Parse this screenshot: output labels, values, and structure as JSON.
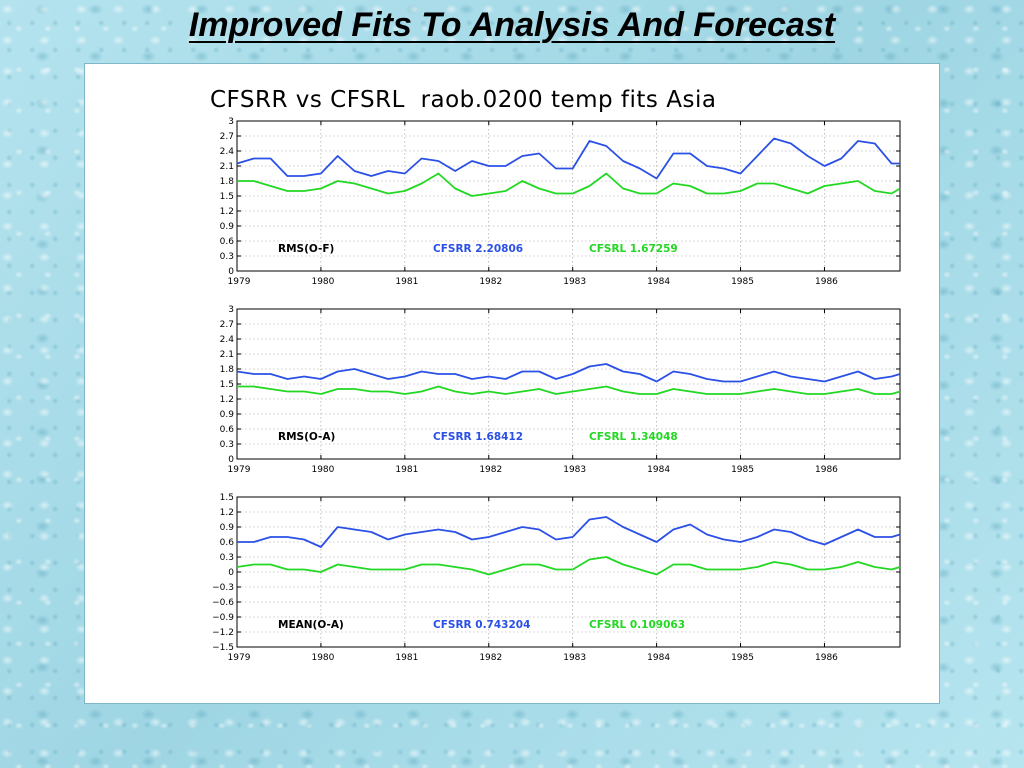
{
  "slide": {
    "title": "Improved Fits To Analysis And Forecast"
  },
  "figure": {
    "title": "CFSRR vs CFSRL  raob.0200 temp fits Asia"
  },
  "colors": {
    "cfsrr": "#2b50e6",
    "cfsrl": "#22d822"
  },
  "chart_data": [
    {
      "type": "line",
      "title": "",
      "xlabel": "",
      "ylabel": "",
      "x": [
        1979.0,
        1979.2,
        1979.4,
        1979.6,
        1979.8,
        1980.0,
        1980.2,
        1980.4,
        1980.6,
        1980.8,
        1981.0,
        1981.2,
        1981.4,
        1981.6,
        1981.8,
        1982.0,
        1982.2,
        1982.4,
        1982.6,
        1982.8,
        1983.0,
        1983.2,
        1983.4,
        1983.6,
        1983.8,
        1984.0,
        1984.2,
        1984.4,
        1984.6,
        1984.8,
        1985.0,
        1985.2,
        1985.4,
        1985.6,
        1985.8,
        1986.0,
        1986.2,
        1986.4,
        1986.6,
        1986.8,
        1986.9
      ],
      "xticks": [
        1979,
        1980,
        1981,
        1982,
        1983,
        1984,
        1985,
        1986
      ],
      "xlim": [
        1979,
        1986.9
      ],
      "ylim": [
        0,
        3
      ],
      "yticks": [
        0,
        0.3,
        0.6,
        0.9,
        1.2,
        1.5,
        1.8,
        2.1,
        2.4,
        2.7,
        3
      ],
      "ytick_labels": [
        "0",
        "0.3",
        "0.6",
        "0.9",
        "1.2",
        "1.5",
        "1.8",
        "2.1",
        "2.4",
        "2.7",
        "3"
      ],
      "series": [
        {
          "name": "CFSRR",
          "color": "#2b50e6",
          "values": [
            2.15,
            2.25,
            2.25,
            1.9,
            1.9,
            1.95,
            2.3,
            2.0,
            1.9,
            2.0,
            1.95,
            2.25,
            2.2,
            2.0,
            2.2,
            2.1,
            2.1,
            2.3,
            2.35,
            2.05,
            2.05,
            2.6,
            2.5,
            2.2,
            2.05,
            1.85,
            2.35,
            2.35,
            2.1,
            2.05,
            1.95,
            2.3,
            2.65,
            2.55,
            2.3,
            2.1,
            2.25,
            2.6,
            2.55,
            2.15,
            2.15
          ]
        },
        {
          "name": "CFSRL",
          "color": "#22d822",
          "values": [
            1.8,
            1.8,
            1.7,
            1.6,
            1.6,
            1.65,
            1.8,
            1.75,
            1.65,
            1.55,
            1.6,
            1.75,
            1.95,
            1.65,
            1.5,
            1.55,
            1.6,
            1.8,
            1.65,
            1.55,
            1.55,
            1.7,
            1.95,
            1.65,
            1.55,
            1.55,
            1.75,
            1.7,
            1.55,
            1.55,
            1.6,
            1.75,
            1.75,
            1.65,
            1.55,
            1.7,
            1.75,
            1.8,
            1.6,
            1.55,
            1.65
          ]
        }
      ],
      "annotations": {
        "label": "RMS(O-F)",
        "cfsrr": "CFSRR 2.20806",
        "cfsrl": "CFSRL 1.67259"
      }
    },
    {
      "type": "line",
      "title": "",
      "xlabel": "",
      "ylabel": "",
      "x": [
        1979.0,
        1979.2,
        1979.4,
        1979.6,
        1979.8,
        1980.0,
        1980.2,
        1980.4,
        1980.6,
        1980.8,
        1981.0,
        1981.2,
        1981.4,
        1981.6,
        1981.8,
        1982.0,
        1982.2,
        1982.4,
        1982.6,
        1982.8,
        1983.0,
        1983.2,
        1983.4,
        1983.6,
        1983.8,
        1984.0,
        1984.2,
        1984.4,
        1984.6,
        1984.8,
        1985.0,
        1985.2,
        1985.4,
        1985.6,
        1985.8,
        1986.0,
        1986.2,
        1986.4,
        1986.6,
        1986.8,
        1986.9
      ],
      "xticks": [
        1979,
        1980,
        1981,
        1982,
        1983,
        1984,
        1985,
        1986
      ],
      "xlim": [
        1979,
        1986.9
      ],
      "ylim": [
        0,
        3
      ],
      "yticks": [
        0,
        0.3,
        0.6,
        0.9,
        1.2,
        1.5,
        1.8,
        2.1,
        2.4,
        2.7,
        3
      ],
      "ytick_labels": [
        "0",
        "0.3",
        "0.6",
        "0.9",
        "1.2",
        "1.5",
        "1.8",
        "2.1",
        "2.4",
        "2.7",
        "3"
      ],
      "series": [
        {
          "name": "CFSRR",
          "color": "#2b50e6",
          "values": [
            1.75,
            1.7,
            1.7,
            1.6,
            1.65,
            1.6,
            1.75,
            1.8,
            1.7,
            1.6,
            1.65,
            1.75,
            1.7,
            1.7,
            1.6,
            1.65,
            1.6,
            1.75,
            1.75,
            1.6,
            1.7,
            1.85,
            1.9,
            1.75,
            1.7,
            1.55,
            1.75,
            1.7,
            1.6,
            1.55,
            1.55,
            1.65,
            1.75,
            1.65,
            1.6,
            1.55,
            1.65,
            1.75,
            1.6,
            1.65,
            1.7
          ]
        },
        {
          "name": "CFSRL",
          "color": "#22d822",
          "values": [
            1.45,
            1.45,
            1.4,
            1.35,
            1.35,
            1.3,
            1.4,
            1.4,
            1.35,
            1.35,
            1.3,
            1.35,
            1.45,
            1.35,
            1.3,
            1.35,
            1.3,
            1.35,
            1.4,
            1.3,
            1.35,
            1.4,
            1.45,
            1.35,
            1.3,
            1.3,
            1.4,
            1.35,
            1.3,
            1.3,
            1.3,
            1.35,
            1.4,
            1.35,
            1.3,
            1.3,
            1.35,
            1.4,
            1.3,
            1.3,
            1.35
          ]
        }
      ],
      "annotations": {
        "label": "RMS(O-A)",
        "cfsrr": "CFSRR 1.68412",
        "cfsrl": "CFSRL 1.34048"
      }
    },
    {
      "type": "line",
      "title": "",
      "xlabel": "",
      "ylabel": "",
      "x": [
        1979.0,
        1979.2,
        1979.4,
        1979.6,
        1979.8,
        1980.0,
        1980.2,
        1980.4,
        1980.6,
        1980.8,
        1981.0,
        1981.2,
        1981.4,
        1981.6,
        1981.8,
        1982.0,
        1982.2,
        1982.4,
        1982.6,
        1982.8,
        1983.0,
        1983.2,
        1983.4,
        1983.6,
        1983.8,
        1984.0,
        1984.2,
        1984.4,
        1984.6,
        1984.8,
        1985.0,
        1985.2,
        1985.4,
        1985.6,
        1985.8,
        1986.0,
        1986.2,
        1986.4,
        1986.6,
        1986.8,
        1986.9
      ],
      "xticks": [
        1979,
        1980,
        1981,
        1982,
        1983,
        1984,
        1985,
        1986
      ],
      "xlim": [
        1979,
        1986.9
      ],
      "ylim": [
        -1.5,
        1.5
      ],
      "yticks": [
        -1.5,
        -1.2,
        -0.9,
        -0.6,
        -0.3,
        0,
        0.3,
        0.6,
        0.9,
        1.2,
        1.5
      ],
      "ytick_labels": [
        "−1.5",
        "−1.2",
        "−0.9",
        "−0.6",
        "−0.3",
        "0",
        "0.3",
        "0.6",
        "0.9",
        "1.2",
        "1.5"
      ],
      "series": [
        {
          "name": "CFSRR",
          "color": "#2b50e6",
          "values": [
            0.6,
            0.6,
            0.7,
            0.7,
            0.65,
            0.5,
            0.9,
            0.85,
            0.8,
            0.65,
            0.75,
            0.8,
            0.85,
            0.8,
            0.65,
            0.7,
            0.8,
            0.9,
            0.85,
            0.65,
            0.7,
            1.05,
            1.1,
            0.9,
            0.75,
            0.6,
            0.85,
            0.95,
            0.75,
            0.65,
            0.6,
            0.7,
            0.85,
            0.8,
            0.65,
            0.55,
            0.7,
            0.85,
            0.7,
            0.7,
            0.75
          ]
        },
        {
          "name": "CFSRL",
          "color": "#22d822",
          "values": [
            0.1,
            0.15,
            0.15,
            0.05,
            0.05,
            0.0,
            0.15,
            0.1,
            0.05,
            0.05,
            0.05,
            0.15,
            0.15,
            0.1,
            0.05,
            -0.05,
            0.05,
            0.15,
            0.15,
            0.05,
            0.05,
            0.25,
            0.3,
            0.15,
            0.05,
            -0.05,
            0.15,
            0.15,
            0.05,
            0.05,
            0.05,
            0.1,
            0.2,
            0.15,
            0.05,
            0.05,
            0.1,
            0.2,
            0.1,
            0.05,
            0.1
          ]
        }
      ],
      "annotations": {
        "label": "MEAN(O-A)",
        "cfsrr": "CFSRR 0.743204",
        "cfsrl": "CFSRL 0.109063"
      }
    }
  ]
}
